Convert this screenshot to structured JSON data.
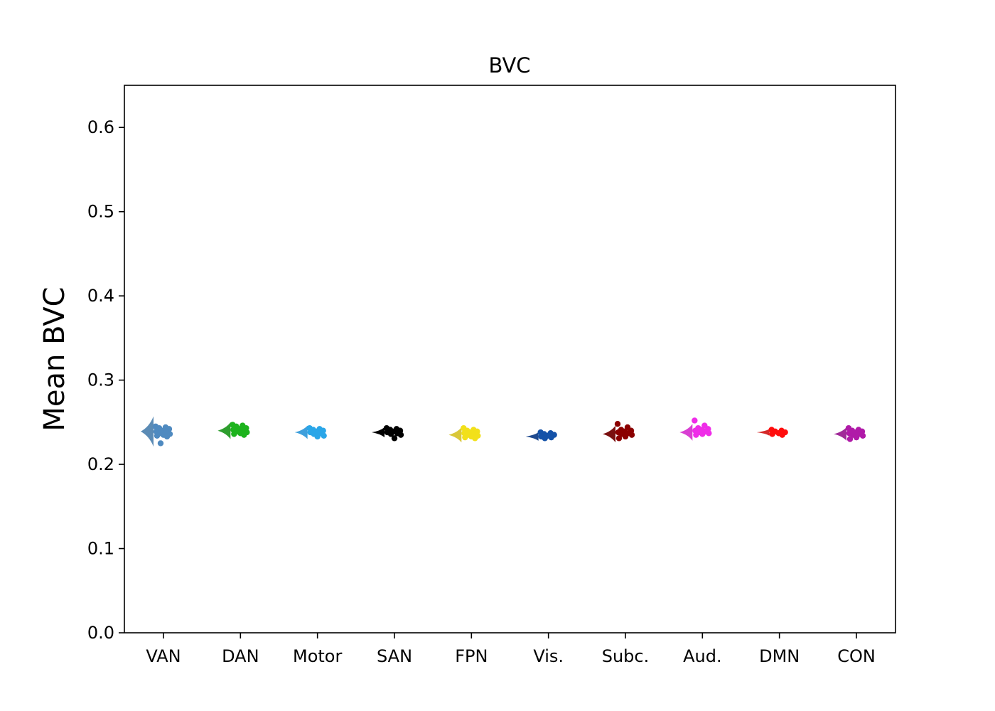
{
  "chart_data": {
    "type": "raincloud",
    "title": "BVC",
    "xlabel": "",
    "ylabel": "Mean BVC",
    "ylim": [
      0,
      0.65
    ],
    "yticks": [
      0.0,
      0.1,
      0.2,
      0.3,
      0.4,
      0.5,
      0.6
    ],
    "ytick_labels": [
      "0.0",
      "0.1",
      "0.2",
      "0.3",
      "0.4",
      "0.5",
      "0.6"
    ],
    "grid": false,
    "categories": [
      {
        "label": "VAN",
        "color": "#4f8ac0",
        "violin_color": "#5b8bb5",
        "center": 0.239,
        "spread": 0.018,
        "points": [
          0.245,
          0.244,
          0.243,
          0.242,
          0.24,
          0.239,
          0.238,
          0.237,
          0.236,
          0.235,
          0.234,
          0.233,
          0.225
        ]
      },
      {
        "label": "DAN",
        "color": "#1db31d",
        "violin_color": "#2e9e2e",
        "center": 0.24,
        "spread": 0.01,
        "points": [
          0.247,
          0.246,
          0.245,
          0.243,
          0.242,
          0.241,
          0.24,
          0.239,
          0.238,
          0.237,
          0.236,
          0.235
        ]
      },
      {
        "label": "Motor",
        "color": "#2aa6e8",
        "violin_color": "#3e9fdc",
        "center": 0.238,
        "spread": 0.008,
        "points": [
          0.243,
          0.242,
          0.241,
          0.24,
          0.239,
          0.238,
          0.237,
          0.236,
          0.234,
          0.233
        ]
      },
      {
        "label": "SAN",
        "color": "#000000",
        "violin_color": "#000000",
        "center": 0.238,
        "spread": 0.006,
        "points": [
          0.243,
          0.242,
          0.241,
          0.24,
          0.239,
          0.238,
          0.237,
          0.236,
          0.235,
          0.231
        ]
      },
      {
        "label": "FPN",
        "color": "#f2e01a",
        "violin_color": "#d9c73a",
        "center": 0.235,
        "spread": 0.009,
        "points": [
          0.243,
          0.241,
          0.24,
          0.239,
          0.238,
          0.237,
          0.236,
          0.235,
          0.234,
          0.233,
          0.232,
          0.231
        ]
      },
      {
        "label": "Vis.",
        "color": "#1452a8",
        "violin_color": "#1f4a8f",
        "center": 0.233,
        "spread": 0.005,
        "points": [
          0.238,
          0.237,
          0.236,
          0.235,
          0.234,
          0.233,
          0.232,
          0.231
        ]
      },
      {
        "label": "Subc.",
        "color": "#8b0000",
        "violin_color": "#7a1010",
        "center": 0.236,
        "spread": 0.01,
        "points": [
          0.248,
          0.244,
          0.241,
          0.24,
          0.239,
          0.238,
          0.237,
          0.236,
          0.235,
          0.233,
          0.231
        ]
      },
      {
        "label": "Aud.",
        "color": "#ef2de8",
        "violin_color": "#d93fd3",
        "center": 0.238,
        "spread": 0.01,
        "points": [
          0.252,
          0.246,
          0.243,
          0.242,
          0.241,
          0.24,
          0.239,
          0.238,
          0.237,
          0.236,
          0.235
        ]
      },
      {
        "label": "DMN",
        "color": "#ff0d0d",
        "violin_color": "#d42a2a",
        "center": 0.238,
        "spread": 0.004,
        "points": [
          0.241,
          0.24,
          0.239,
          0.238,
          0.237,
          0.236,
          0.235
        ]
      },
      {
        "label": "CON",
        "color": "#b01aa8",
        "violin_color": "#a02a98",
        "center": 0.236,
        "spread": 0.008,
        "points": [
          0.243,
          0.241,
          0.24,
          0.239,
          0.238,
          0.237,
          0.236,
          0.235,
          0.234,
          0.232,
          0.23
        ]
      }
    ]
  }
}
